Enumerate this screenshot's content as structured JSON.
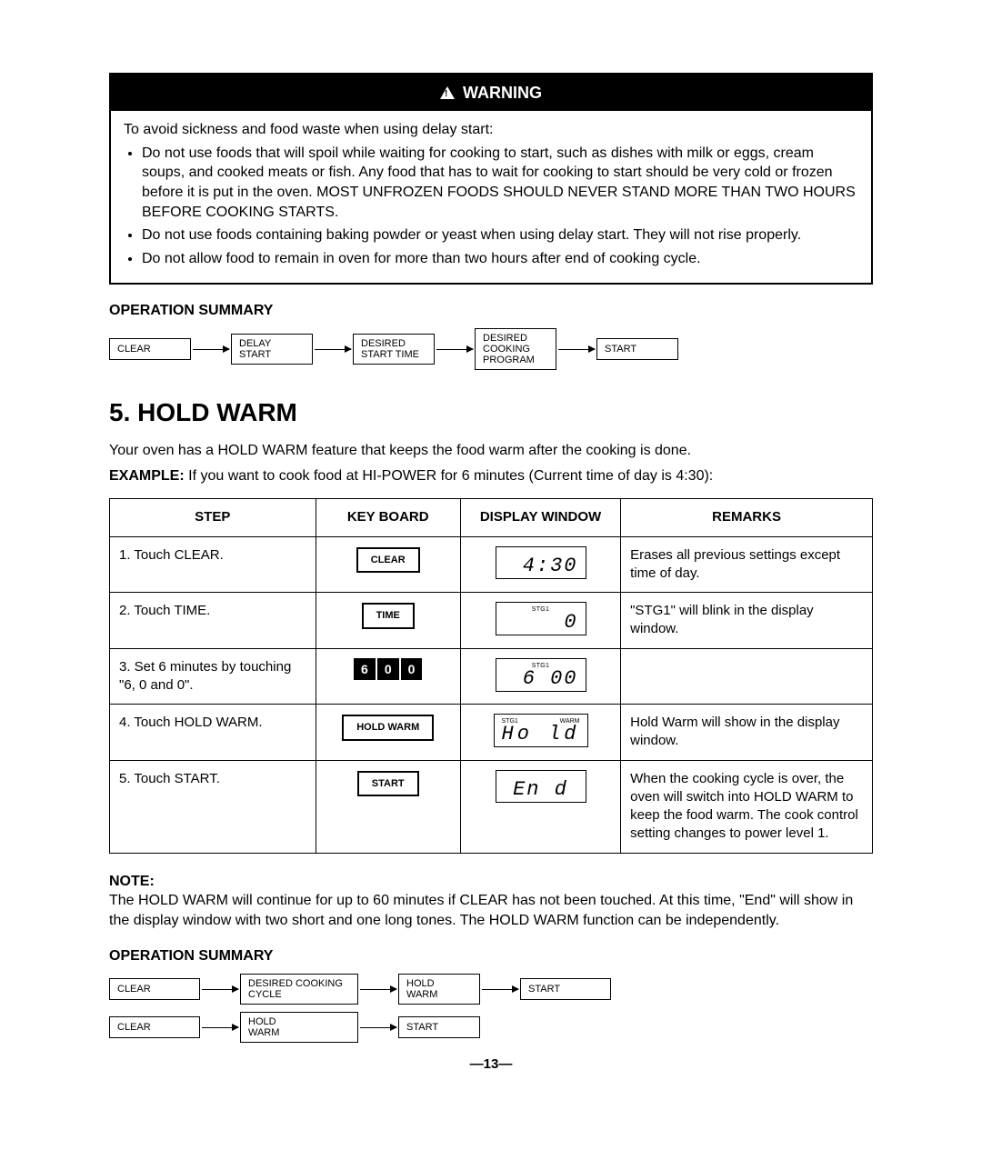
{
  "warning": {
    "header": "WARNING",
    "lead": "To avoid sickness and food waste when using delay start:",
    "bullets": [
      "Do not use foods that will spoil while waiting for cooking to start, such as dishes with milk or eggs, cream soups, and cooked meats or fish. Any food that has to wait for cooking to start should be very cold or frozen before it is put in the oven. MOST UNFROZEN FOODS SHOULD NEVER STAND MORE THAN TWO HOURS BEFORE COOKING STARTS.",
      "Do not use foods containing baking powder or yeast when using delay start. They will not rise properly.",
      "Do not allow food to remain in oven for more than two hours after end of cooking cycle."
    ]
  },
  "opsum1": {
    "heading": "OPERATION SUMMARY",
    "boxes": [
      "CLEAR",
      "DELAY\nSTART",
      "DESIRED\nSTART TIME",
      "DESIRED\nCOOKING\nPROGRAM",
      "START"
    ]
  },
  "section": {
    "title": "5. HOLD WARM",
    "intro1": "Your oven has a HOLD WARM feature that keeps the food warm after the cooking is done.",
    "example_label": "EXAMPLE:",
    "example_text": "If you want to cook food at HI-POWER for 6 minutes (Current time of day is 4:30):"
  },
  "table": {
    "headers": [
      "STEP",
      "KEY BOARD",
      "DISPLAY WINDOW",
      "REMARKS"
    ],
    "rows": [
      {
        "step": "1. Touch CLEAR.",
        "kb_type": "btn",
        "kb": "CLEAR",
        "disp_type": "plain",
        "disp": "4:30",
        "remarks": "Erases all previous settings except time of day."
      },
      {
        "step": "2. Touch TIME.",
        "kb_type": "btn",
        "kb": "TIME",
        "disp_type": "stg",
        "disp_stg": "STG1",
        "disp": "0",
        "remarks": "\"STG1\" will blink in the display window."
      },
      {
        "step": "3. Set 6 minutes by touching \"6, 0 and 0\".",
        "kb_type": "num",
        "kb_nums": [
          "6",
          "0",
          "0"
        ],
        "disp_type": "stg",
        "disp_stg": "STG1",
        "disp": "6 00",
        "remarks": ""
      },
      {
        "step": "4. Touch HOLD WARM.",
        "kb_type": "btn",
        "kb": "HOLD WARM",
        "disp_type": "hold",
        "disp_l": "STG1",
        "disp_r": "WARM",
        "disp": "Ho  ld",
        "remarks": "Hold Warm will show in the display window."
      },
      {
        "step": "5. Touch START.",
        "kb_type": "btn",
        "kb": "START",
        "disp_type": "plain_center",
        "disp": "En d",
        "remarks": "When the cooking cycle is over, the oven will switch into HOLD WARM to keep the food warm. The cook control setting changes to power level 1."
      }
    ]
  },
  "note": {
    "label": "NOTE:",
    "text": "The HOLD WARM will continue for up to 60 minutes if CLEAR has not been touched. At this time, \"End\" will show in the display window with two short and one long tones. The HOLD WARM function can be independently."
  },
  "opsum2": {
    "heading": "OPERATION SUMMARY",
    "row1": [
      "CLEAR",
      "DESIRED COOKING\nCYCLE",
      "HOLD\nWARM",
      "START"
    ],
    "row2": [
      "CLEAR",
      "HOLD\nWARM",
      "START"
    ]
  },
  "page_num": "—13—"
}
